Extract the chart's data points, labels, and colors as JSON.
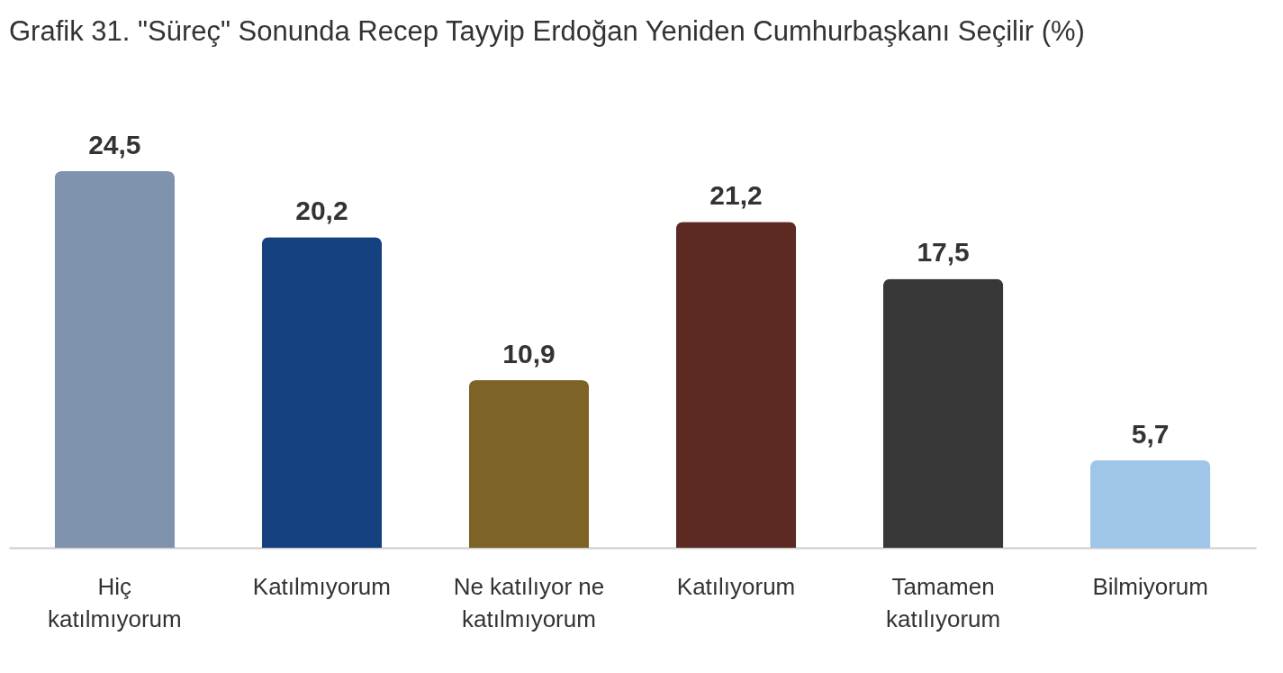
{
  "chart_data": {
    "type": "bar",
    "title": "Grafik 31. \"Süreç\" Sonunda Recep Tayyip Erdoğan Yeniden Cumhurbaşkanı Seçilir (%)",
    "categories": [
      "Hiç katılmıyorum",
      "Katılmıyorum",
      "Ne katılıyor ne katılmıyorum",
      "Katılıyorum",
      "Tamamen katılıyorum",
      "Bilmiyorum"
    ],
    "values": [
      24.5,
      20.2,
      10.9,
      21.2,
      17.5,
      5.7
    ],
    "value_labels": [
      "24,5",
      "20,2",
      "10,9",
      "21,2",
      "17,5",
      "5,7"
    ],
    "colors": [
      "#8093ad",
      "#15417e",
      "#7d6426",
      "#5c2a22",
      "#383737",
      "#9fc5e8"
    ]
  }
}
